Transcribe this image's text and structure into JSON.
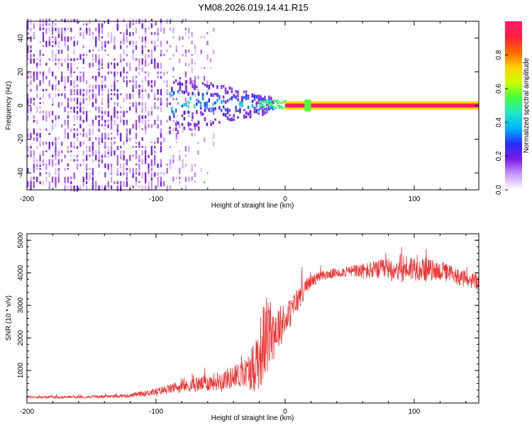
{
  "title": "YM08.2026.019.14.41.R15",
  "chart_data": [
    {
      "type": "heatmap",
      "xlabel": "Height of straight line (km)",
      "ylabel": "Frequency (Hz)",
      "xlim": [
        -200,
        150
      ],
      "ylim": [
        -50,
        50
      ],
      "xticks": [
        -200,
        -100,
        0,
        100
      ],
      "xtick_labels": [
        "-200",
        "-100",
        "0",
        "100"
      ],
      "yticks": [
        -40,
        -20,
        0,
        20,
        40
      ],
      "ytick_labels": [
        "-40",
        "-20",
        "0",
        "20",
        "40"
      ],
      "colorbar": {
        "label": "Normalized spectral amplitude",
        "range": [
          0,
          1
        ],
        "ticks": [
          0.0,
          0.2,
          0.4,
          0.6,
          0.8
        ],
        "tick_labels": [
          "0.0",
          "0.2",
          "0.4",
          "0.6",
          "0.8"
        ],
        "colormap": [
          "#ffffff",
          "#cc99ff",
          "#7a1ee6",
          "#2a2aff",
          "#00b4ff",
          "#20e6c8",
          "#40ff40",
          "#ccff00",
          "#ffd000",
          "#ff6400",
          "#ff1f3d",
          "#ff1f6e"
        ]
      },
      "features": {
        "carrier_line": {
          "x_start": 0,
          "x_end": 150,
          "frequency_hz": 0,
          "amplitude": 0.98
        },
        "noise_floor_extent_x": [
          -200,
          -55
        ],
        "scintillation_zone_x": [
          -90,
          -10
        ],
        "transition_zone_x": [
          -20,
          0
        ]
      }
    },
    {
      "type": "line",
      "xlabel": "Height of straight line (km)",
      "ylabel": "SNR (10 * v/v)",
      "xlim": [
        -200,
        150
      ],
      "ylim": [
        0,
        5200
      ],
      "xticks": [
        -200,
        -100,
        0,
        100
      ],
      "xtick_labels": [
        "-200",
        "-100",
        "0",
        "100"
      ],
      "yticks": [
        1000,
        2000,
        3000,
        4000,
        5000
      ],
      "ytick_labels": [
        "1000",
        "2000",
        "3000",
        "4000",
        "5000"
      ],
      "series": [
        {
          "name": "SNR",
          "color": "#ee3333",
          "x": [
            -200,
            -180,
            -160,
            -140,
            -120,
            -100,
            -90,
            -80,
            -70,
            -60,
            -50,
            -40,
            -30,
            -25,
            -20,
            -15,
            -10,
            -5,
            0,
            5,
            10,
            15,
            20,
            30,
            40,
            50,
            60,
            70,
            80,
            90,
            100,
            110,
            120,
            130,
            140,
            150
          ],
          "values": [
            180,
            180,
            190,
            200,
            230,
            350,
            430,
            500,
            560,
            620,
            700,
            800,
            950,
            1100,
            1500,
            2000,
            2200,
            2350,
            2500,
            2850,
            3200,
            3500,
            3750,
            3920,
            4000,
            4050,
            4050,
            4080,
            4100,
            4150,
            4150,
            4100,
            4050,
            3950,
            3800,
            3700
          ],
          "noise_amplitude": [
            40,
            40,
            40,
            45,
            60,
            120,
            150,
            180,
            220,
            260,
            300,
            360,
            450,
            800,
            1100,
            1300,
            1000,
            700,
            500,
            450,
            400,
            300,
            200,
            150,
            150,
            170,
            250,
            300,
            350,
            450,
            400,
            350,
            300,
            280,
            250,
            250
          ]
        }
      ]
    }
  ]
}
